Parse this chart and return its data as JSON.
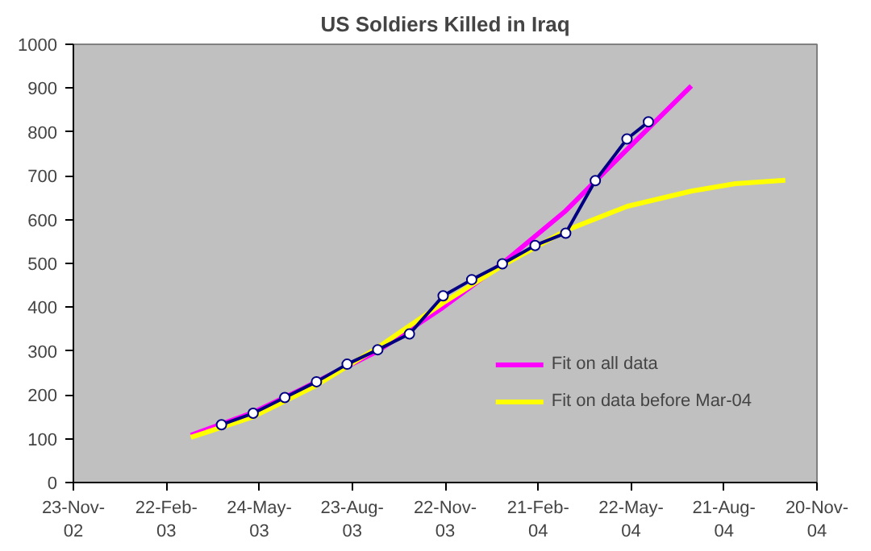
{
  "chart_data": {
    "type": "line",
    "title": "US Soldiers Killed in Iraq",
    "xlim": [
      "2002-11-23",
      "2004-11-20"
    ],
    "xticks": [
      {
        "value": "2002-11-23",
        "label": "23-Nov-\n02"
      },
      {
        "value": "2003-02-22",
        "label": "22-Feb-\n03"
      },
      {
        "value": "2003-05-24",
        "label": "24-May-\n03"
      },
      {
        "value": "2003-08-23",
        "label": "23-Aug-\n03"
      },
      {
        "value": "2003-11-22",
        "label": "22-Nov-\n03"
      },
      {
        "value": "2004-02-21",
        "label": "21-Feb-\n04"
      },
      {
        "value": "2004-05-22",
        "label": "22-May-\n04"
      },
      {
        "value": "2004-08-21",
        "label": "21-Aug-\n04"
      },
      {
        "value": "2004-11-20",
        "label": "20-Nov-\n04"
      }
    ],
    "ylim": [
      0,
      1000
    ],
    "yticks": [
      0,
      100,
      200,
      300,
      400,
      500,
      600,
      700,
      800,
      900,
      1000
    ],
    "grid": false,
    "legend": "bottom right",
    "line_style": "solid",
    "series": [
      {
        "name": "Fit on all data",
        "color": "#ff00ff",
        "marker": "none",
        "x": [
          "2003-03-18",
          "2003-05-18",
          "2003-07-02",
          "2003-09-17",
          "2003-11-20",
          "2004-01-17",
          "2004-03-19",
          "2004-05-18",
          "2004-07-20"
        ],
        "values": [
          108,
          160,
          210,
          300,
          400,
          500,
          620,
          760,
          905
        ]
      },
      {
        "name": "Fit on data before Mar-04",
        "color": "#ffff00",
        "marker": "none",
        "x": [
          "2003-03-18",
          "2003-05-18",
          "2003-07-19",
          "2003-09-17",
          "2003-11-20",
          "2004-01-17",
          "2004-03-19",
          "2004-05-18",
          "2004-07-20",
          "2004-09-01",
          "2004-10-20"
        ],
        "values": [
          103,
          150,
          222,
          308,
          410,
          495,
          575,
          630,
          665,
          682,
          690
        ]
      },
      {
        "color": "#000080",
        "marker": "circle",
        "x": [
          "2003-04-17",
          "2003-05-18",
          "2003-06-18",
          "2003-07-19",
          "2003-08-18",
          "2003-09-17",
          "2003-10-18",
          "2003-11-20",
          "2003-12-18",
          "2004-01-17",
          "2004-02-18",
          "2004-03-19",
          "2004-04-17",
          "2004-05-18",
          "2004-06-08"
        ],
        "values": [
          132,
          158,
          194,
          230,
          270,
          303,
          339,
          426,
          463,
          499,
          541,
          569,
          689,
          784,
          823
        ]
      }
    ]
  }
}
